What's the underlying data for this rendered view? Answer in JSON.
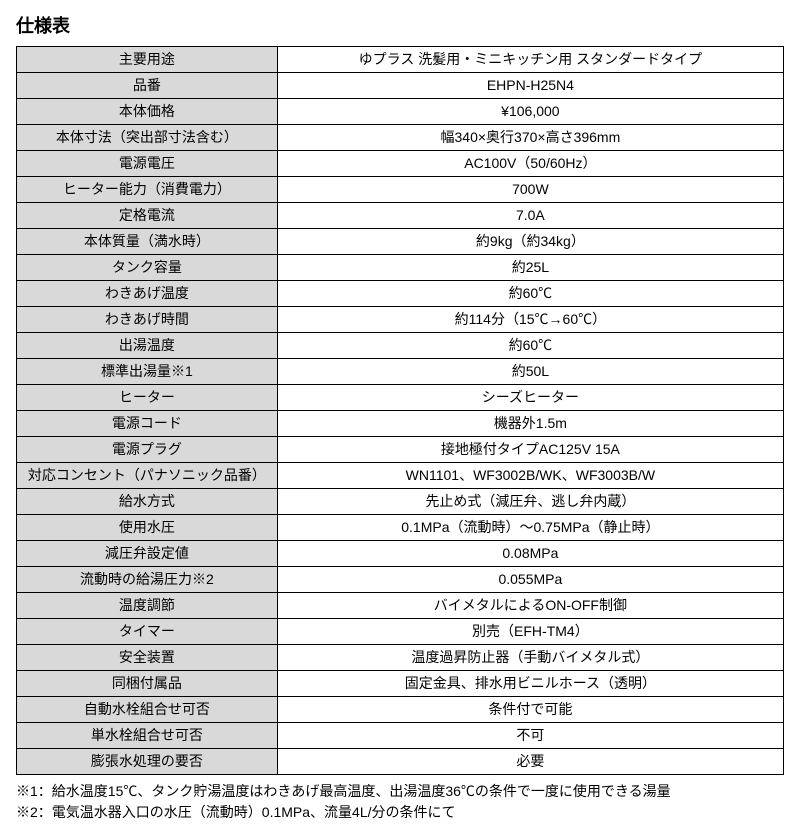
{
  "title": "仕様表",
  "table": {
    "rows": [
      {
        "label": "主要用途",
        "value": "ゆプラス 洗髪用・ミニキッチン用 スタンダードタイプ"
      },
      {
        "label": "品番",
        "value": "EHPN-H25N4"
      },
      {
        "label": "本体価格",
        "value": "¥106,000"
      },
      {
        "label": "本体寸法（突出部寸法含む）",
        "value": "幅340×奥行370×高さ396mm"
      },
      {
        "label": "電源電圧",
        "value": "AC100V（50/60Hz）"
      },
      {
        "label": "ヒーター能力（消費電力）",
        "value": "700W"
      },
      {
        "label": "定格電流",
        "value": "7.0A"
      },
      {
        "label": "本体質量（満水時）",
        "value": "約9kg（約34kg）"
      },
      {
        "label": "タンク容量",
        "value": "約25L"
      },
      {
        "label": "わきあげ温度",
        "value": "約60℃"
      },
      {
        "label": "わきあげ時間",
        "value": "約114分（15℃→60℃）"
      },
      {
        "label": "出湯温度",
        "value": "約60℃"
      },
      {
        "label": "標準出湯量※1",
        "value": "約50L"
      },
      {
        "label": "ヒーター",
        "value": "シーズヒーター"
      },
      {
        "label": "電源コード",
        "value": "機器外1.5m"
      },
      {
        "label": "電源プラグ",
        "value": "接地極付タイプAC125V 15A"
      },
      {
        "label": "対応コンセント（パナソニック品番）",
        "value": "WN1101、WF3002B/WK、WF3003B/W"
      },
      {
        "label": "給水方式",
        "value": "先止め式（減圧弁、逃し弁内蔵）"
      },
      {
        "label": "使用水圧",
        "value": "0.1MPa（流動時）～0.75MPa（静止時）"
      },
      {
        "label": "減圧弁設定値",
        "value": "0.08MPa"
      },
      {
        "label": "流動時の給湯圧力※2",
        "value": "0.055MPa"
      },
      {
        "label": "温度調節",
        "value": "バイメタルによるON-OFF制御"
      },
      {
        "label": "タイマー",
        "value": "別売（EFH-TM4）"
      },
      {
        "label": "安全装置",
        "value": "温度過昇防止器（手動バイメタル式）"
      },
      {
        "label": "同梱付属品",
        "value": "固定金具、排水用ビニルホース（透明）"
      },
      {
        "label": "自動水栓組合せ可否",
        "value": "条件付で可能"
      },
      {
        "label": "単水栓組合せ可否",
        "value": "不可"
      },
      {
        "label": "膨張水処理の要否",
        "value": "必要"
      }
    ]
  },
  "footnotes": [
    "※1：給水温度15℃、タンク貯湯温度はわきあげ最高温度、出湯温度36℃の条件で一度に使用できる湯量",
    "※2：電気温水器入口の水圧（流動時）0.1MPa、流量4L/分の条件にて"
  ],
  "colors": {
    "label_bg": "#d9d9d9",
    "value_bg": "#ffffff",
    "border": "#000000",
    "text": "#000000"
  }
}
